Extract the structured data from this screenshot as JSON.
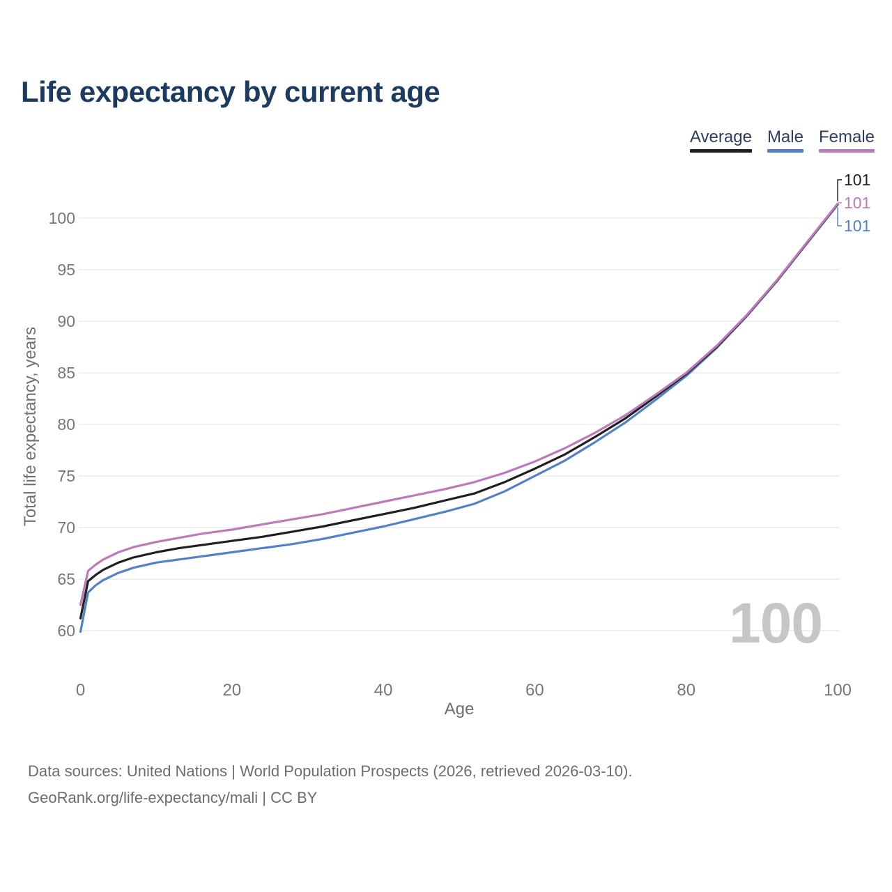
{
  "header": {
    "title": "Life expectancy by current age"
  },
  "legend": {
    "items": [
      {
        "label": "Average",
        "color": "#1f1f1f"
      },
      {
        "label": "Male",
        "color": "#5282c3"
      },
      {
        "label": "Female",
        "color": "#bb7ab8"
      }
    ]
  },
  "chart_data": {
    "type": "line",
    "title": "Life expectancy by current age",
    "xlabel": "Age",
    "ylabel": "Total life expectancy, years",
    "xlim": [
      0,
      100
    ],
    "ylim": [
      59.5,
      103
    ],
    "xticks": [
      0,
      20,
      40,
      60,
      80,
      100
    ],
    "yticks": [
      60,
      65,
      70,
      75,
      80,
      85,
      90,
      95,
      100
    ],
    "grid": "horizontal",
    "legend_position": "top-right",
    "watermark": "100",
    "x": [
      0,
      1,
      2,
      3,
      5,
      7,
      10,
      13,
      16,
      20,
      24,
      28,
      32,
      36,
      40,
      44,
      48,
      52,
      56,
      60,
      64,
      68,
      72,
      76,
      80,
      84,
      88,
      92,
      96,
      100
    ],
    "series": [
      {
        "name": "Male",
        "color": "#5282c3",
        "end_label": "101",
        "values": [
          59.9,
          63.7,
          64.4,
          64.9,
          65.6,
          66.1,
          66.6,
          66.9,
          67.2,
          67.6,
          68.0,
          68.4,
          68.9,
          69.5,
          70.1,
          70.8,
          71.5,
          72.3,
          73.5,
          75.0,
          76.5,
          78.3,
          80.2,
          82.4,
          84.7,
          87.4,
          90.5,
          93.9,
          97.6,
          101.3
        ]
      },
      {
        "name": "Average",
        "color": "#1f1f1f",
        "end_label": "101",
        "values": [
          61.2,
          64.8,
          65.4,
          65.9,
          66.6,
          67.1,
          67.6,
          68.0,
          68.3,
          68.7,
          69.1,
          69.6,
          70.1,
          70.7,
          71.3,
          71.9,
          72.6,
          73.3,
          74.4,
          75.7,
          77.1,
          78.8,
          80.6,
          82.7,
          84.9,
          87.5,
          90.55,
          93.95,
          97.65,
          101.35
        ]
      },
      {
        "name": "Female",
        "color": "#bb7ab8",
        "end_label": "101",
        "values": [
          62.5,
          65.8,
          66.4,
          66.9,
          67.6,
          68.1,
          68.6,
          69.0,
          69.4,
          69.8,
          70.3,
          70.8,
          71.3,
          71.9,
          72.5,
          73.1,
          73.7,
          74.4,
          75.3,
          76.4,
          77.7,
          79.2,
          80.9,
          82.9,
          85.0,
          87.6,
          90.6,
          94.0,
          97.7,
          101.4
        ]
      }
    ]
  },
  "axes": {
    "x_label": "Age",
    "y_label": "Total life expectancy, years"
  },
  "footer": {
    "line1": "Data sources: United Nations | World Population Prospects (2026, retrieved 2026-03-10).",
    "line2": "GeoRank.org/life-expectancy/mali | CC BY"
  }
}
